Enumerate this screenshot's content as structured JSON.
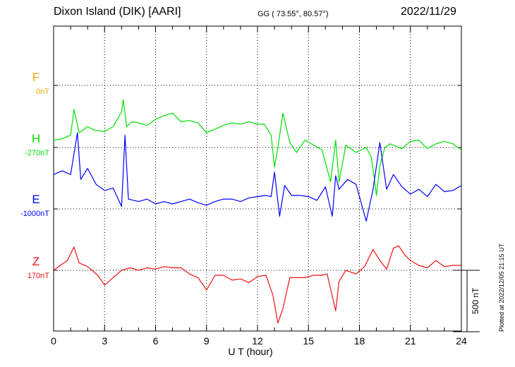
{
  "header": {
    "station": "Dixon Island (DIK)  [AARI]",
    "coords": "GG ( 73.55°,  80.57°)",
    "date": "2022/11/29"
  },
  "plotted_note": "Plotted at 2022/12/05 21:15 UT",
  "scale_bar_label": "500 nT",
  "chart_data": {
    "type": "line",
    "xlabel": "U T (hour)",
    "x_ticks": [
      "0",
      "3",
      "6",
      "9",
      "12",
      "15",
      "18",
      "21",
      "24"
    ],
    "xlim": [
      0,
      24
    ],
    "scale_bar_nT": 500,
    "grid": "dotted vertical every 3 h, dotted baseline per component",
    "series": [
      {
        "name": "F",
        "offset_label": "0nT",
        "color": "#f0a800",
        "points": []
      },
      {
        "name": "H",
        "offset_label": "-270nT",
        "color": "#00e000",
        "points": [
          [
            0,
            60
          ],
          [
            0.5,
            70
          ],
          [
            1.0,
            100
          ],
          [
            1.2,
            310
          ],
          [
            1.5,
            120
          ],
          [
            2.0,
            170
          ],
          [
            2.4,
            140
          ],
          [
            3.0,
            130
          ],
          [
            3.5,
            170
          ],
          [
            4.0,
            290
          ],
          [
            4.1,
            390
          ],
          [
            4.3,
            170
          ],
          [
            4.6,
            210
          ],
          [
            5.0,
            200
          ],
          [
            5.5,
            180
          ],
          [
            6.0,
            230
          ],
          [
            6.5,
            260
          ],
          [
            7.0,
            280
          ],
          [
            7.5,
            210
          ],
          [
            8.0,
            220
          ],
          [
            8.5,
            200
          ],
          [
            9.0,
            120
          ],
          [
            9.5,
            150
          ],
          [
            10.0,
            180
          ],
          [
            10.5,
            200
          ],
          [
            11.0,
            190
          ],
          [
            11.5,
            210
          ],
          [
            12.0,
            190
          ],
          [
            12.4,
            190
          ],
          [
            12.8,
            100
          ],
          [
            13.0,
            -160
          ],
          [
            13.2,
            0
          ],
          [
            13.5,
            280
          ],
          [
            13.9,
            40
          ],
          [
            14.3,
            -40
          ],
          [
            14.8,
            60
          ],
          [
            15.3,
            20
          ],
          [
            15.8,
            -20
          ],
          [
            16.3,
            -280
          ],
          [
            16.6,
            60
          ],
          [
            16.8,
            -280
          ],
          [
            17.2,
            20
          ],
          [
            17.8,
            -40
          ],
          [
            18.4,
            0
          ],
          [
            18.7,
            -80
          ],
          [
            18.9,
            -280
          ],
          [
            19.0,
            -390
          ],
          [
            19.2,
            -150
          ],
          [
            19.5,
            0
          ],
          [
            19.8,
            30
          ],
          [
            20.5,
            -10
          ],
          [
            21.0,
            50
          ],
          [
            21.5,
            60
          ],
          [
            22.0,
            -10
          ],
          [
            22.5,
            30
          ],
          [
            23.0,
            50
          ],
          [
            23.5,
            30
          ],
          [
            24.0,
            -20
          ]
        ]
      },
      {
        "name": "E",
        "offset_label": "-1000nT",
        "color": "#0000ff",
        "points": [
          [
            0,
            280
          ],
          [
            0.5,
            310
          ],
          [
            1.0,
            280
          ],
          [
            1.4,
            620
          ],
          [
            1.6,
            240
          ],
          [
            2.0,
            330
          ],
          [
            2.5,
            200
          ],
          [
            3.0,
            150
          ],
          [
            3.5,
            170
          ],
          [
            4.0,
            20
          ],
          [
            4.2,
            600
          ],
          [
            4.4,
            80
          ],
          [
            5.0,
            60
          ],
          [
            5.5,
            80
          ],
          [
            6.0,
            40
          ],
          [
            6.5,
            60
          ],
          [
            7.0,
            40
          ],
          [
            7.5,
            60
          ],
          [
            8.0,
            80
          ],
          [
            8.5,
            50
          ],
          [
            9.0,
            30
          ],
          [
            9.5,
            60
          ],
          [
            10.0,
            80
          ],
          [
            10.5,
            80
          ],
          [
            11.0,
            60
          ],
          [
            11.5,
            90
          ],
          [
            12.0,
            100
          ],
          [
            12.5,
            110
          ],
          [
            12.8,
            100
          ],
          [
            13.0,
            300
          ],
          [
            13.3,
            -60
          ],
          [
            13.6,
            190
          ],
          [
            14.0,
            110
          ],
          [
            14.5,
            110
          ],
          [
            15.0,
            100
          ],
          [
            15.5,
            70
          ],
          [
            16.0,
            180
          ],
          [
            16.4,
            -60
          ],
          [
            16.6,
            270
          ],
          [
            16.8,
            160
          ],
          [
            17.3,
            240
          ],
          [
            17.8,
            200
          ],
          [
            18.4,
            -100
          ],
          [
            18.8,
            160
          ],
          [
            19.2,
            540
          ],
          [
            19.6,
            160
          ],
          [
            20.0,
            280
          ],
          [
            20.5,
            180
          ],
          [
            21.0,
            120
          ],
          [
            21.5,
            160
          ],
          [
            22.0,
            100
          ],
          [
            22.5,
            200
          ],
          [
            23.0,
            140
          ],
          [
            23.5,
            150
          ],
          [
            24.0,
            190
          ]
        ]
      },
      {
        "name": "Z",
        "offset_label": "170nT",
        "color": "#ee1111",
        "points": [
          [
            0,
            0
          ],
          [
            0.8,
            80
          ],
          [
            1.2,
            190
          ],
          [
            1.5,
            60
          ],
          [
            2.0,
            30
          ],
          [
            2.6,
            -40
          ],
          [
            3.0,
            -120
          ],
          [
            3.5,
            -60
          ],
          [
            4.0,
            0
          ],
          [
            4.5,
            20
          ],
          [
            5.0,
            0
          ],
          [
            5.5,
            20
          ],
          [
            6.0,
            10
          ],
          [
            6.5,
            30
          ],
          [
            7.0,
            20
          ],
          [
            7.5,
            20
          ],
          [
            8.0,
            -30
          ],
          [
            8.5,
            -60
          ],
          [
            9.0,
            -160
          ],
          [
            9.5,
            -40
          ],
          [
            10.0,
            -40
          ],
          [
            10.5,
            -80
          ],
          [
            11.0,
            -70
          ],
          [
            11.5,
            -100
          ],
          [
            12.0,
            -50
          ],
          [
            12.5,
            -40
          ],
          [
            12.9,
            -200
          ],
          [
            13.2,
            -430
          ],
          [
            13.5,
            -310
          ],
          [
            13.9,
            -60
          ],
          [
            14.3,
            -60
          ],
          [
            14.8,
            -60
          ],
          [
            15.3,
            -40
          ],
          [
            15.8,
            -40
          ],
          [
            16.1,
            -30
          ],
          [
            16.6,
            -330
          ],
          [
            16.8,
            -90
          ],
          [
            17.2,
            0
          ],
          [
            17.8,
            -30
          ],
          [
            18.3,
            30
          ],
          [
            18.8,
            170
          ],
          [
            19.2,
            80
          ],
          [
            19.6,
            10
          ],
          [
            20.0,
            180
          ],
          [
            20.3,
            200
          ],
          [
            20.7,
            120
          ],
          [
            21.0,
            80
          ],
          [
            21.5,
            40
          ],
          [
            22.0,
            20
          ],
          [
            22.5,
            80
          ],
          [
            23.0,
            30
          ],
          [
            23.5,
            40
          ],
          [
            24.0,
            40
          ]
        ]
      }
    ]
  }
}
